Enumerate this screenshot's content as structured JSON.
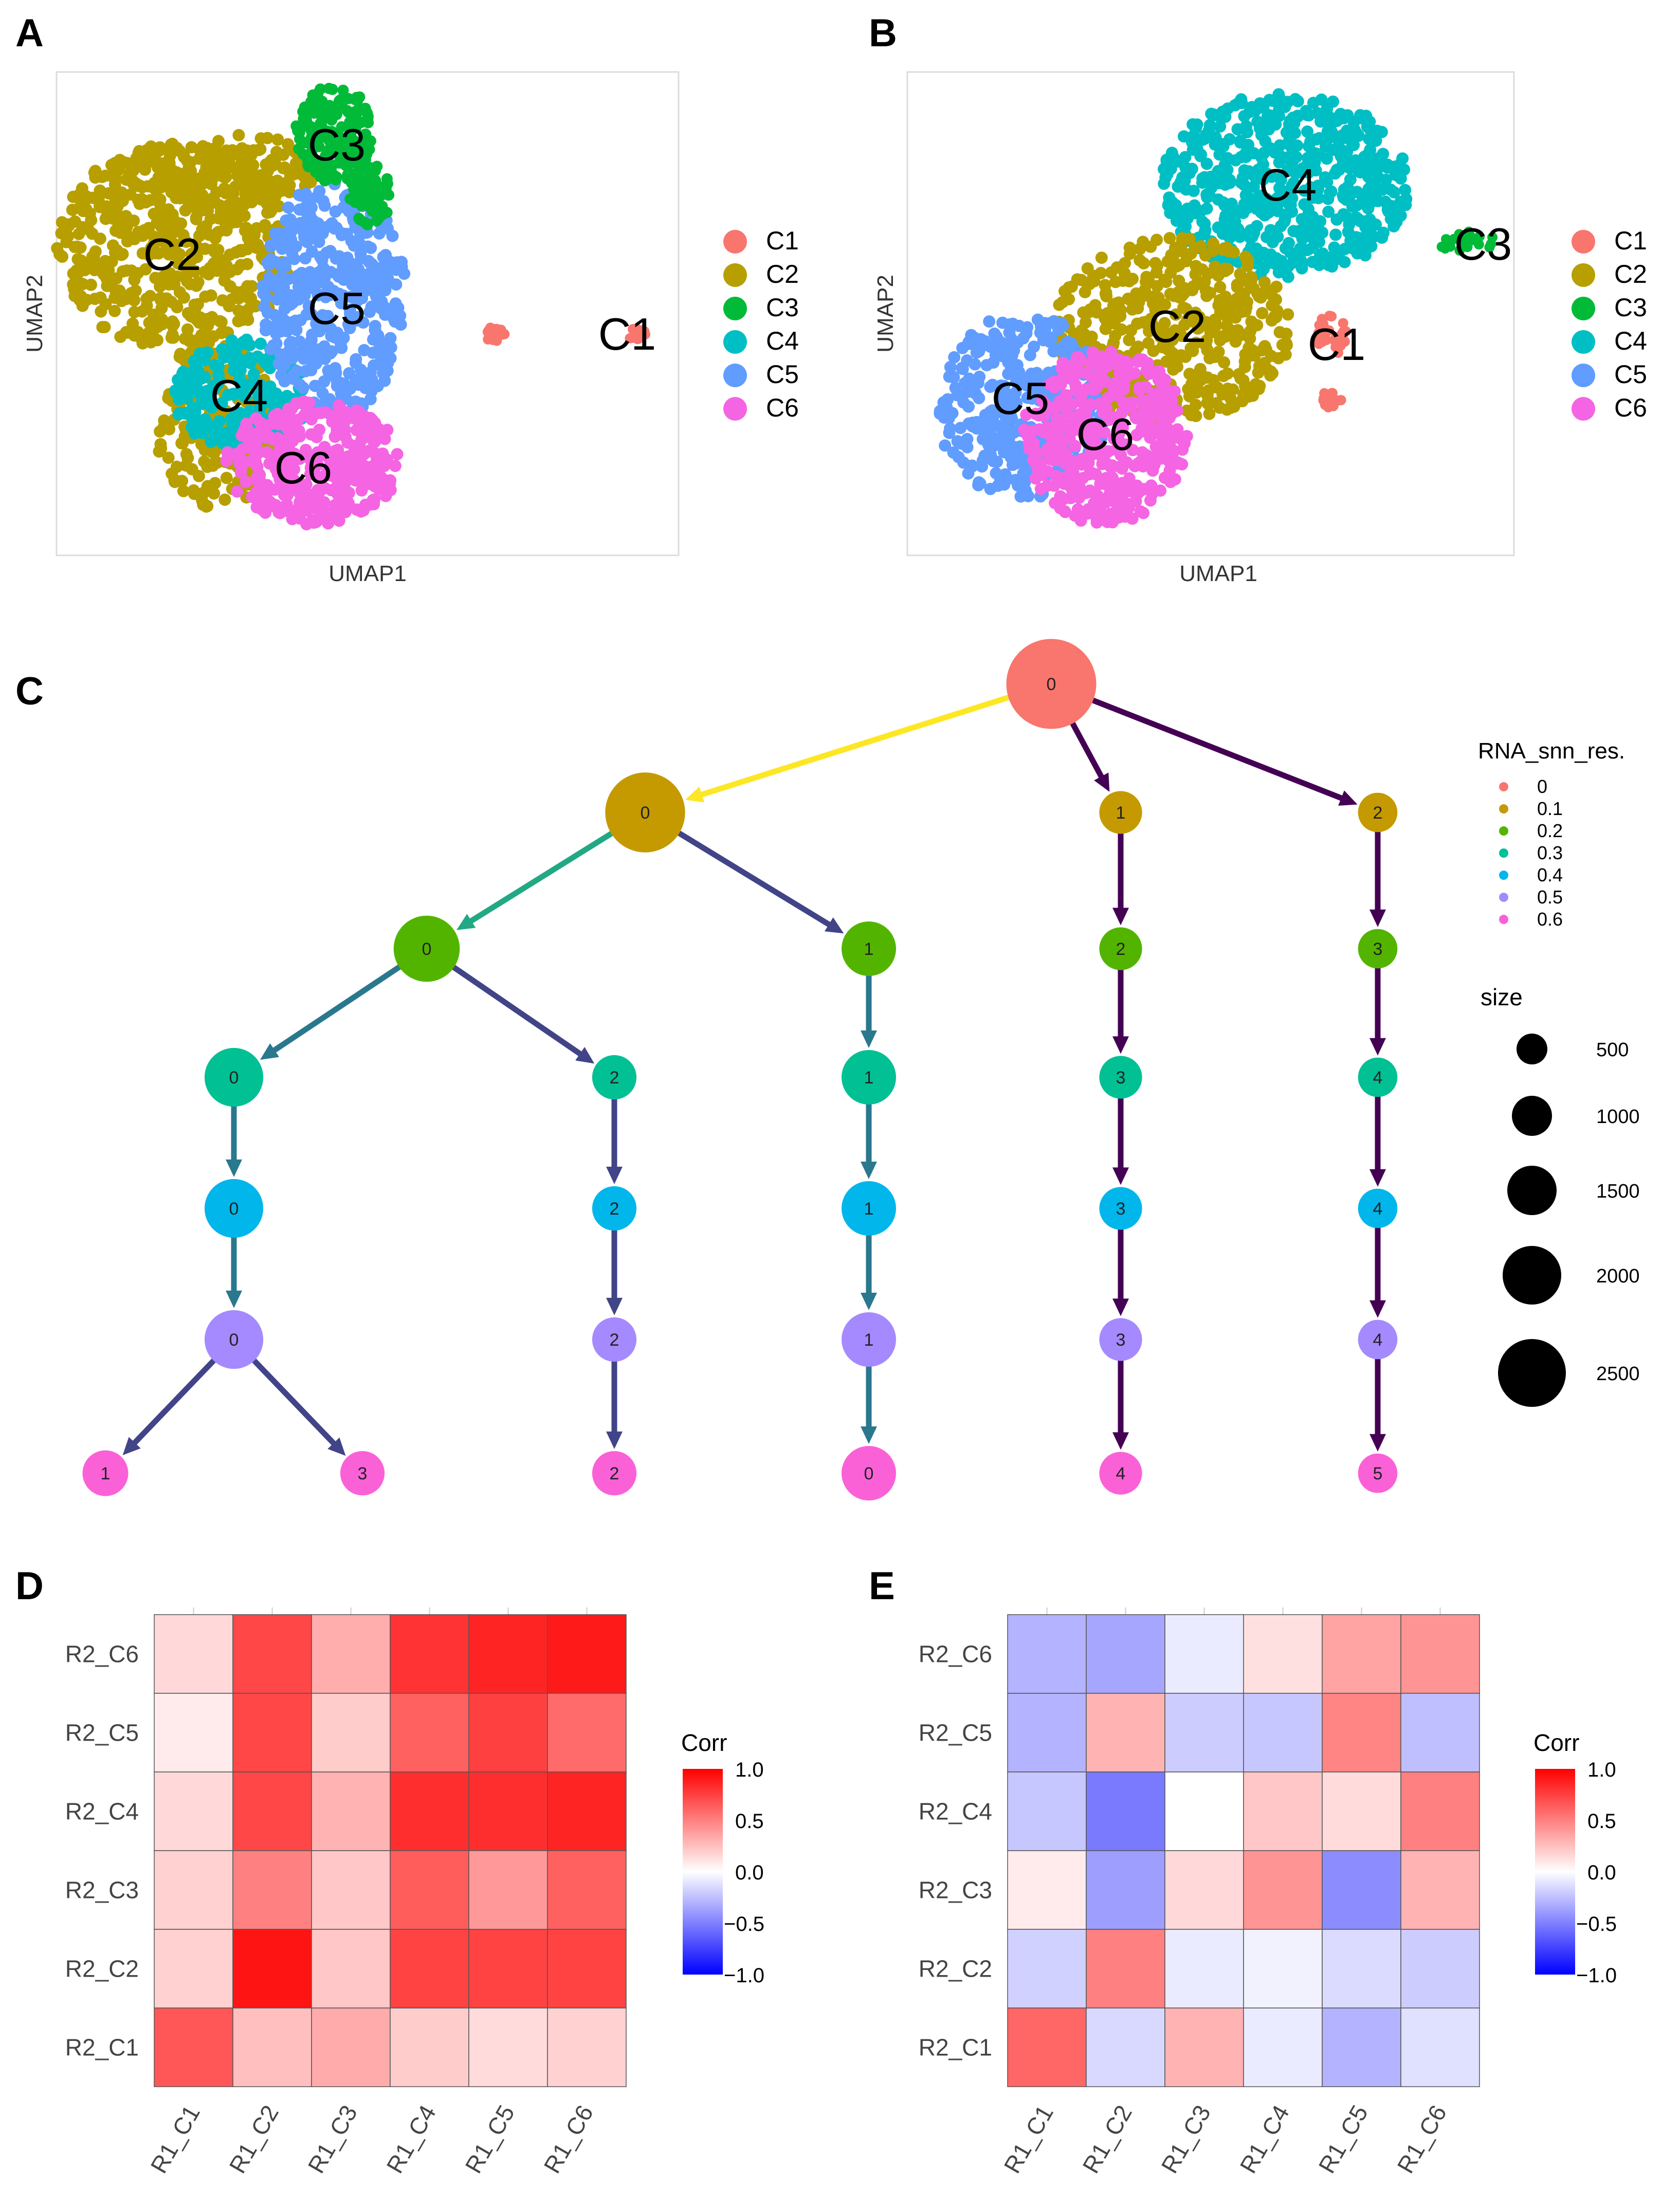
{
  "colors": {
    "C1": "#F8766D",
    "C2": "#B79F00",
    "C3": "#00BA38",
    "C4": "#00BFC4",
    "C5": "#619CFF",
    "C6": "#F564E3",
    "res_0": "#F8766D",
    "res_0.1": "#C49A00",
    "res_0.2": "#53B400",
    "res_0.3": "#00C094",
    "res_0.4": "#00B6EB",
    "res_0.5": "#A58AFF",
    "res_0.6": "#FB61D7",
    "corr_low": "#0000FF",
    "corr_mid": "#FFFFFF",
    "corr_high": "#FF0000",
    "edge_high": "#FDE725",
    "edge_mid1": "#22A884",
    "edge_mid2": "#2A788E",
    "edge_mid3": "#414487",
    "edge_low": "#440154"
  },
  "panel_labels": [
    "A",
    "B",
    "C",
    "D",
    "E"
  ],
  "chart_data": [
    {
      "id": "A",
      "type": "scatter",
      "xlabel": "UMAP1",
      "ylabel": "UMAP2",
      "legend_entries": [
        "C1",
        "C2",
        "C3",
        "C4",
        "C5",
        "C6"
      ],
      "cluster_labels": [
        "C1",
        "C2",
        "C3",
        "C4",
        "C5",
        "C6"
      ]
    },
    {
      "id": "B",
      "type": "scatter",
      "xlabel": "UMAP1",
      "ylabel": "UMAP2",
      "legend_entries": [
        "C1",
        "C2",
        "C3",
        "C4",
        "C5",
        "C6"
      ],
      "cluster_labels": [
        "C1",
        "C2",
        "C3",
        "C4",
        "C5",
        "C6"
      ]
    },
    {
      "id": "C",
      "type": "tree",
      "legend_color_title": "RNA_snn_res.",
      "resolutions": [
        "0",
        "0.1",
        "0.2",
        "0.3",
        "0.4",
        "0.5",
        "0.6"
      ],
      "legend_size_title": "size",
      "size_values": [
        500,
        1000,
        1500,
        2000,
        2500
      ],
      "nodes": [
        {
          "id": "r0_0",
          "res": "0",
          "label": "0",
          "size": 3200
        },
        {
          "id": "r1_0",
          "res": "0.1",
          "label": "0",
          "size": 2400
        },
        {
          "id": "r1_1",
          "res": "0.1",
          "label": "1",
          "size": 450
        },
        {
          "id": "r1_2",
          "res": "0.1",
          "label": "2",
          "size": 350
        },
        {
          "id": "r2_0",
          "res": "0.2",
          "label": "0",
          "size": 1500
        },
        {
          "id": "r2_1",
          "res": "0.2",
          "label": "1",
          "size": 900
        },
        {
          "id": "r2_2",
          "res": "0.2",
          "label": "2",
          "size": 450
        },
        {
          "id": "r2_3",
          "res": "0.2",
          "label": "3",
          "size": 350
        },
        {
          "id": "r3_0",
          "res": "0.3",
          "label": "0",
          "size": 1100
        },
        {
          "id": "r3_2",
          "res": "0.3",
          "label": "2",
          "size": 500
        },
        {
          "id": "r3_1",
          "res": "0.3",
          "label": "1",
          "size": 900
        },
        {
          "id": "r3_3",
          "res": "0.3",
          "label": "3",
          "size": 450
        },
        {
          "id": "r3_4",
          "res": "0.3",
          "label": "4",
          "size": 350
        },
        {
          "id": "r4_0",
          "res": "0.4",
          "label": "0",
          "size": 1100
        },
        {
          "id": "r4_2",
          "res": "0.4",
          "label": "2",
          "size": 500
        },
        {
          "id": "r4_1",
          "res": "0.4",
          "label": "1",
          "size": 900
        },
        {
          "id": "r4_3",
          "res": "0.4",
          "label": "3",
          "size": 450
        },
        {
          "id": "r4_4",
          "res": "0.4",
          "label": "4",
          "size": 350
        },
        {
          "id": "r5_0",
          "res": "0.5",
          "label": "0",
          "size": 1100
        },
        {
          "id": "r5_2",
          "res": "0.5",
          "label": "2",
          "size": 500
        },
        {
          "id": "r5_1",
          "res": "0.5",
          "label": "1",
          "size": 900
        },
        {
          "id": "r5_3",
          "res": "0.5",
          "label": "3",
          "size": 450
        },
        {
          "id": "r5_4",
          "res": "0.5",
          "label": "4",
          "size": 350
        },
        {
          "id": "r6_1",
          "res": "0.6",
          "label": "1",
          "size": 550
        },
        {
          "id": "r6_3",
          "res": "0.6",
          "label": "3",
          "size": 500
        },
        {
          "id": "r6_2",
          "res": "0.6",
          "label": "2",
          "size": 500
        },
        {
          "id": "r6_0",
          "res": "0.6",
          "label": "0",
          "size": 900
        },
        {
          "id": "r6_4",
          "res": "0.6",
          "label": "4",
          "size": 450
        },
        {
          "id": "r6_5",
          "res": "0.6",
          "label": "5",
          "size": 350
        }
      ],
      "edges": [
        {
          "from": "r0_0",
          "to": "r1_0",
          "prop": 1.0
        },
        {
          "from": "r0_0",
          "to": "r1_1",
          "prop": 0.14
        },
        {
          "from": "r0_0",
          "to": "r1_2",
          "prop": 0.11
        },
        {
          "from": "r1_0",
          "to": "r2_0",
          "prop": 0.62
        },
        {
          "from": "r1_0",
          "to": "r2_1",
          "prop": 0.37
        },
        {
          "from": "r1_1",
          "to": "r2_2",
          "prop": 0.1
        },
        {
          "from": "r1_2",
          "to": "r2_3",
          "prop": 0.1
        },
        {
          "from": "r2_0",
          "to": "r3_0",
          "prop": 0.45
        },
        {
          "from": "r2_0",
          "to": "r3_2",
          "prop": 0.3
        },
        {
          "from": "r2_1",
          "to": "r3_1",
          "prop": 0.45
        },
        {
          "from": "r2_2",
          "to": "r3_3",
          "prop": 0.1
        },
        {
          "from": "r2_3",
          "to": "r3_4",
          "prop": 0.1
        },
        {
          "from": "r3_0",
          "to": "r4_0",
          "prop": 0.45
        },
        {
          "from": "r3_2",
          "to": "r4_2",
          "prop": 0.3
        },
        {
          "from": "r3_1",
          "to": "r4_1",
          "prop": 0.45
        },
        {
          "from": "r3_3",
          "to": "r4_3",
          "prop": 0.1
        },
        {
          "from": "r3_4",
          "to": "r4_4",
          "prop": 0.1
        },
        {
          "from": "r4_0",
          "to": "r5_0",
          "prop": 0.45
        },
        {
          "from": "r4_2",
          "to": "r5_2",
          "prop": 0.3
        },
        {
          "from": "r4_1",
          "to": "r5_1",
          "prop": 0.45
        },
        {
          "from": "r4_3",
          "to": "r5_3",
          "prop": 0.1
        },
        {
          "from": "r4_4",
          "to": "r5_4",
          "prop": 0.1
        },
        {
          "from": "r5_0",
          "to": "r6_1",
          "prop": 0.3
        },
        {
          "from": "r5_0",
          "to": "r6_3",
          "prop": 0.25
        },
        {
          "from": "r5_2",
          "to": "r6_2",
          "prop": 0.3
        },
        {
          "from": "r5_1",
          "to": "r6_0",
          "prop": 0.45
        },
        {
          "from": "r5_3",
          "to": "r6_4",
          "prop": 0.1
        },
        {
          "from": "r5_4",
          "to": "r6_5",
          "prop": 0.1
        }
      ]
    },
    {
      "id": "D",
      "type": "heatmap",
      "x_categories": [
        "R1_C1",
        "R1_C2",
        "R1_C3",
        "R1_C4",
        "R1_C5",
        "R1_C6"
      ],
      "y_categories": [
        "R2_C6",
        "R2_C5",
        "R2_C4",
        "R2_C3",
        "R2_C2",
        "R2_C1"
      ],
      "values": [
        [
          0.15,
          0.72,
          0.32,
          0.8,
          0.86,
          0.9
        ],
        [
          0.08,
          0.72,
          0.2,
          0.62,
          0.75,
          0.58
        ],
        [
          0.15,
          0.72,
          0.3,
          0.82,
          0.82,
          0.86
        ],
        [
          0.18,
          0.5,
          0.22,
          0.64,
          0.4,
          0.62
        ],
        [
          0.18,
          0.92,
          0.22,
          0.74,
          0.74,
          0.74
        ],
        [
          0.66,
          0.25,
          0.33,
          0.2,
          0.14,
          0.18
        ]
      ],
      "legend_title": "Corr",
      "legend_ticks": [
        "1.0",
        "0.5",
        "0.0",
        "−0.5",
        "−1.0"
      ],
      "vlim": [
        -1,
        1
      ]
    },
    {
      "id": "E",
      "type": "heatmap",
      "x_categories": [
        "R1_C1",
        "R1_C2",
        "R1_C3",
        "R1_C4",
        "R1_C5",
        "R1_C6"
      ],
      "y_categories": [
        "R2_C6",
        "R2_C5",
        "R2_C4",
        "R2_C3",
        "R2_C2",
        "R2_C1"
      ],
      "values": [
        [
          -0.3,
          -0.35,
          -0.08,
          0.12,
          0.36,
          0.42
        ],
        [
          -0.3,
          0.3,
          -0.2,
          -0.22,
          0.48,
          -0.25
        ],
        [
          -0.22,
          -0.52,
          0.0,
          0.22,
          0.14,
          0.5
        ],
        [
          0.08,
          -0.38,
          0.15,
          0.42,
          -0.45,
          0.3
        ],
        [
          -0.18,
          0.5,
          -0.08,
          -0.05,
          -0.14,
          -0.2
        ],
        [
          0.6,
          -0.15,
          0.3,
          -0.08,
          -0.3,
          -0.12
        ]
      ],
      "legend_title": "Corr",
      "legend_ticks": [
        "1.0",
        "0.5",
        "0.0",
        "−0.5",
        "−1.0"
      ],
      "vlim": [
        -1,
        1
      ]
    }
  ]
}
